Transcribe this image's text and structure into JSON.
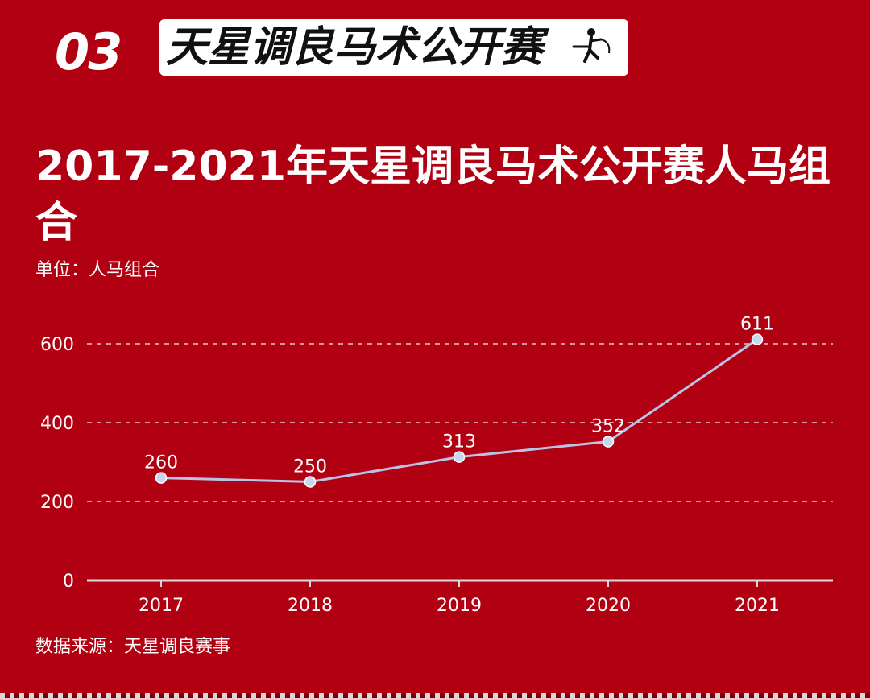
{
  "header": {
    "section_number": "03",
    "banner_title": "天星调良马术公开赛",
    "banner_icon": "equestrian-rider-icon"
  },
  "unit_label": "单位：人马组合",
  "source_label": "数据来源：天星调良赛事",
  "colors": {
    "background": "#b10012",
    "line": "#b8c4e6",
    "marker_fill": "#c7d7ee",
    "marker_stroke": "#ffffff",
    "gridline": "#f3c6cb",
    "axis": "#d9d9d9"
  },
  "chart_data": {
    "type": "line",
    "title": "2017-2021年天星调良马术公开赛人马组合",
    "categories": [
      "2017",
      "2018",
      "2019",
      "2020",
      "2021"
    ],
    "series": [
      {
        "values": [
          260,
          250,
          313,
          352,
          611
        ]
      }
    ],
    "y_ticks": [
      0,
      200,
      400,
      600
    ],
    "ylim": [
      0,
      600
    ],
    "grid": true,
    "data_labels": [
      "260",
      "250",
      "313",
      "352",
      "611"
    ]
  }
}
